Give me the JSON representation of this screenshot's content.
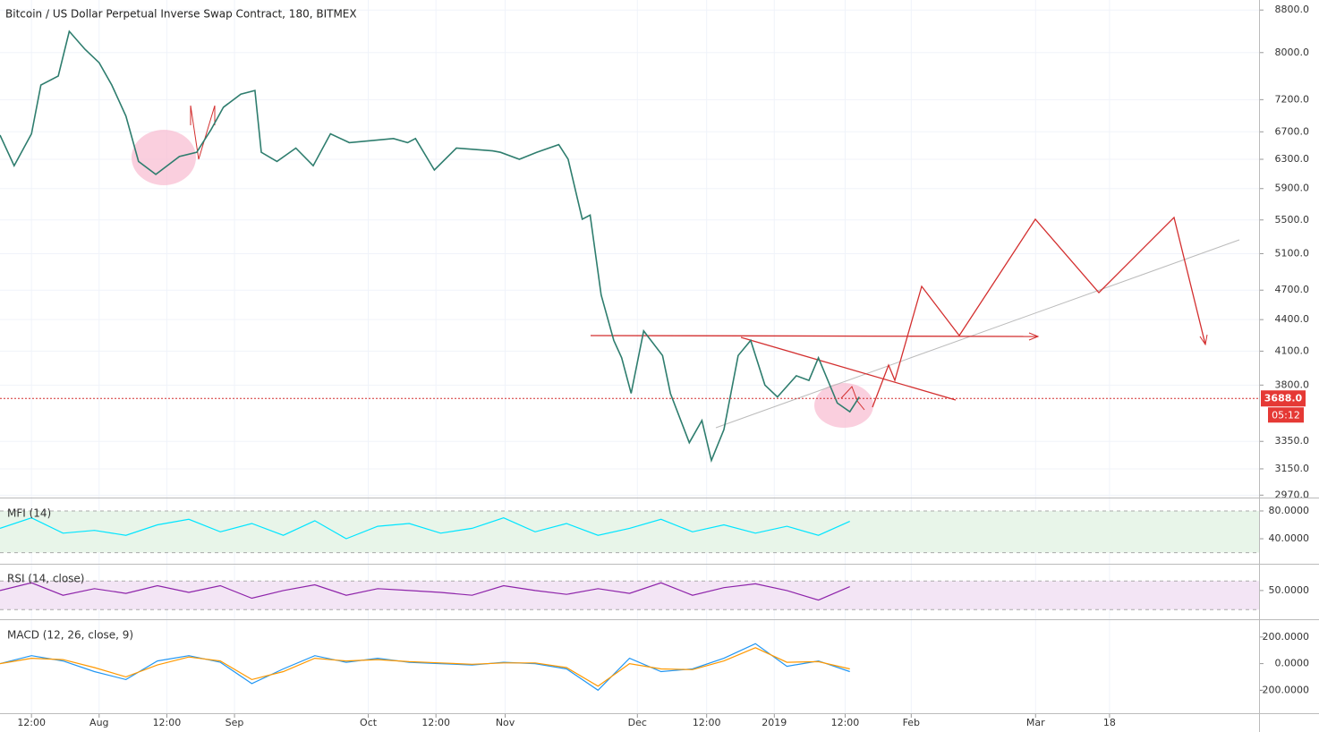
{
  "chart_data": [
    {
      "type": "line",
      "title": "Bitcoin / US Dollar Perpetual Inverse Swap Contract, 180, BITMEX",
      "log_scale": true,
      "grid": true,
      "xlim": [
        0,
        800
      ],
      "xticks": [
        {
          "value": 20,
          "label": "12:00"
        },
        {
          "value": 63,
          "label": "Aug"
        },
        {
          "value": 106,
          "label": "12:00"
        },
        {
          "value": 149,
          "label": "Sep"
        },
        {
          "value": 234,
          "label": "Oct"
        },
        {
          "value": 277,
          "label": "12:00"
        },
        {
          "value": 321,
          "label": "Nov"
        },
        {
          "value": 405,
          "label": "Dec"
        },
        {
          "value": 449,
          "label": "12:00"
        },
        {
          "value": 492,
          "label": "2019"
        },
        {
          "value": 537,
          "label": "12:00"
        },
        {
          "value": 579,
          "label": "Feb"
        },
        {
          "value": 658,
          "label": "Mar"
        },
        {
          "value": 705,
          "label": "18"
        }
      ],
      "ylim": [
        2960,
        9000
      ],
      "yticks": [
        {
          "value": 8800,
          "label": "8800.0"
        },
        {
          "value": 8000,
          "label": "8000.0"
        },
        {
          "value": 7200,
          "label": "7200.0"
        },
        {
          "value": 6700,
          "label": "6700.0"
        },
        {
          "value": 6300,
          "label": "6300.0"
        },
        {
          "value": 5900,
          "label": "5900.0"
        },
        {
          "value": 5500,
          "label": "5500.0"
        },
        {
          "value": 5100,
          "label": "5100.0"
        },
        {
          "value": 4700,
          "label": "4700.0"
        },
        {
          "value": 4400,
          "label": "4400.0"
        },
        {
          "value": 4100,
          "label": "4100.0"
        },
        {
          "value": 3800,
          "label": "3800.0"
        },
        {
          "value": 3350,
          "label": "3350.0"
        },
        {
          "value": 3150,
          "label": "3150.0"
        },
        {
          "value": 2970,
          "label": "2970.0"
        }
      ],
      "x": [
        0,
        9,
        20,
        26,
        37,
        44,
        54,
        63,
        71,
        80,
        88,
        99,
        114,
        125,
        134,
        142,
        153,
        162,
        166,
        176,
        188,
        199,
        210,
        222,
        250,
        259,
        264,
        276,
        290,
        313,
        318,
        330,
        341,
        355,
        361,
        370,
        375,
        382,
        390,
        395,
        401,
        409,
        421,
        426,
        438,
        446,
        452,
        460,
        469,
        477,
        486,
        494,
        506,
        514,
        520,
        532,
        540,
        546
      ],
      "series": [
        {
          "name": "XBTUSD",
          "color": "#2e7d6e",
          "values": [
            6650,
            6210,
            6670,
            7440,
            7590,
            8390,
            8060,
            7820,
            7440,
            6940,
            6270,
            6090,
            6340,
            6400,
            6730,
            7080,
            7290,
            7350,
            6400,
            6270,
            6460,
            6210,
            6670,
            6540,
            6600,
            6540,
            6600,
            6150,
            6460,
            6420,
            6400,
            6300,
            6400,
            6510,
            6300,
            5510,
            5560,
            4650,
            4200,
            4040,
            3730,
            4290,
            4060,
            3730,
            3340,
            3510,
            3210,
            3440,
            4060,
            4200,
            3800,
            3700,
            3880,
            3840,
            4040,
            3650,
            3580,
            3700
          ]
        }
      ],
      "current_price": {
        "value": 3688,
        "label": "3688.0"
      },
      "countdown": "05:12"
    },
    {
      "type": "line",
      "title": "MFI (14)",
      "ylim": [
        4,
        98
      ],
      "yticks": [
        {
          "value": 80,
          "label": "80.0000"
        },
        {
          "value": 40,
          "label": "40.0000"
        }
      ],
      "bands": [
        20,
        80
      ],
      "band_color": "#e8f5e9",
      "x": [
        0,
        20,
        40,
        60,
        80,
        100,
        120,
        140,
        160,
        180,
        200,
        220,
        240,
        260,
        280,
        300,
        320,
        340,
        360,
        380,
        400,
        420,
        440,
        460,
        480,
        500,
        520,
        540
      ],
      "series": [
        {
          "name": "MFI",
          "color": "#00e5ff",
          "values": [
            55,
            70,
            48,
            52,
            45,
            60,
            68,
            50,
            62,
            45,
            66,
            40,
            58,
            62,
            48,
            55,
            70,
            50,
            62,
            45,
            55,
            68,
            50,
            60,
            48,
            58,
            45,
            65
          ]
        }
      ]
    },
    {
      "type": "line",
      "title": "RSI (14, close)",
      "ylim": [
        20,
        77
      ],
      "yticks": [
        {
          "value": 50,
          "label": "50.0000"
        }
      ],
      "bands": [
        30,
        60
      ],
      "band_color": "#f3e5f5",
      "x": [
        0,
        20,
        40,
        60,
        80,
        100,
        120,
        140,
        160,
        180,
        200,
        220,
        240,
        260,
        280,
        300,
        320,
        340,
        360,
        380,
        400,
        420,
        440,
        460,
        480,
        500,
        520,
        540
      ],
      "series": [
        {
          "name": "RSI",
          "color": "#8e24aa",
          "values": [
            50,
            58,
            45,
            52,
            47,
            55,
            48,
            55,
            42,
            50,
            56,
            45,
            52,
            50,
            48,
            45,
            55,
            50,
            46,
            52,
            47,
            58,
            45,
            53,
            57,
            50,
            40,
            54
          ]
        }
      ]
    },
    {
      "type": "line",
      "title": "MACD (12, 26, close, 9)",
      "ylim": [
        -373,
        327
      ],
      "yticks": [
        {
          "value": 200,
          "label": "200.0000"
        },
        {
          "value": 0,
          "label": "0.0000"
        },
        {
          "value": -200,
          "label": "-200.0000"
        }
      ],
      "x": [
        0,
        20,
        40,
        60,
        80,
        100,
        120,
        140,
        160,
        180,
        200,
        220,
        240,
        260,
        280,
        300,
        320,
        340,
        360,
        380,
        400,
        420,
        440,
        460,
        480,
        500,
        520,
        540
      ],
      "series": [
        {
          "name": "MACD",
          "color": "#2196f3",
          "values": [
            0,
            60,
            20,
            -60,
            -120,
            20,
            60,
            10,
            -150,
            -40,
            60,
            10,
            40,
            10,
            0,
            -10,
            10,
            0,
            -40,
            -200,
            40,
            -60,
            -40,
            40,
            150,
            -20,
            20,
            -60
          ]
        },
        {
          "name": "Signal",
          "color": "#ff9800",
          "values": [
            0,
            40,
            30,
            -30,
            -100,
            -10,
            50,
            20,
            -120,
            -60,
            40,
            20,
            30,
            15,
            5,
            -5,
            5,
            5,
            -30,
            -170,
            0,
            -40,
            -45,
            20,
            120,
            10,
            15,
            -40
          ]
        }
      ]
    }
  ]
}
